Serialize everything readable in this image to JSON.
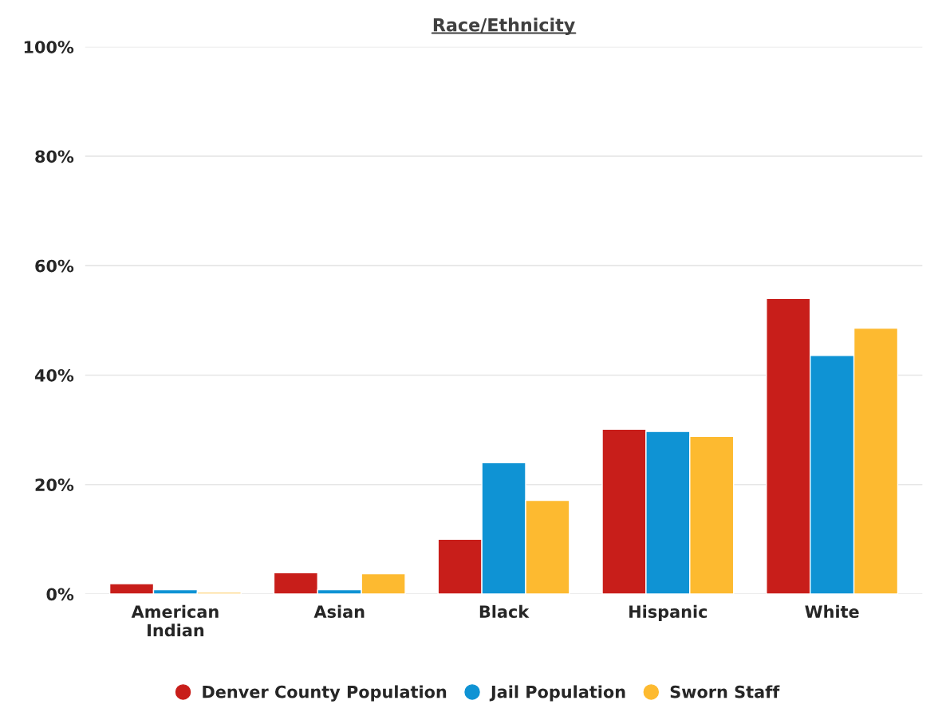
{
  "chart_data": {
    "type": "bar",
    "title": "Race/Ethnicity",
    "categories": [
      "American\nIndian",
      "Asian",
      "Black",
      "Hispanic",
      "White"
    ],
    "series": [
      {
        "name": "Denver County Population",
        "color": "#c81e1a",
        "values": [
          1.9,
          3.9,
          10.0,
          30.1,
          54.0
        ]
      },
      {
        "name": "Jail Population",
        "color": "#0f93d4",
        "values": [
          0.8,
          0.8,
          24.0,
          29.7,
          43.6
        ]
      },
      {
        "name": "Sworn Staff",
        "color": "#fdba30",
        "values": [
          0.3,
          3.7,
          17.1,
          28.8,
          48.6
        ]
      }
    ],
    "ylim": [
      0,
      100
    ],
    "yticks": [
      {
        "value": 0,
        "label": "0%"
      },
      {
        "value": 20,
        "label": "20%"
      },
      {
        "value": 40,
        "label": "40%"
      },
      {
        "value": 60,
        "label": "60%"
      },
      {
        "value": 80,
        "label": "80%"
      },
      {
        "value": 100,
        "label": "100%"
      }
    ],
    "grid": "y",
    "legend": "bottom"
  }
}
